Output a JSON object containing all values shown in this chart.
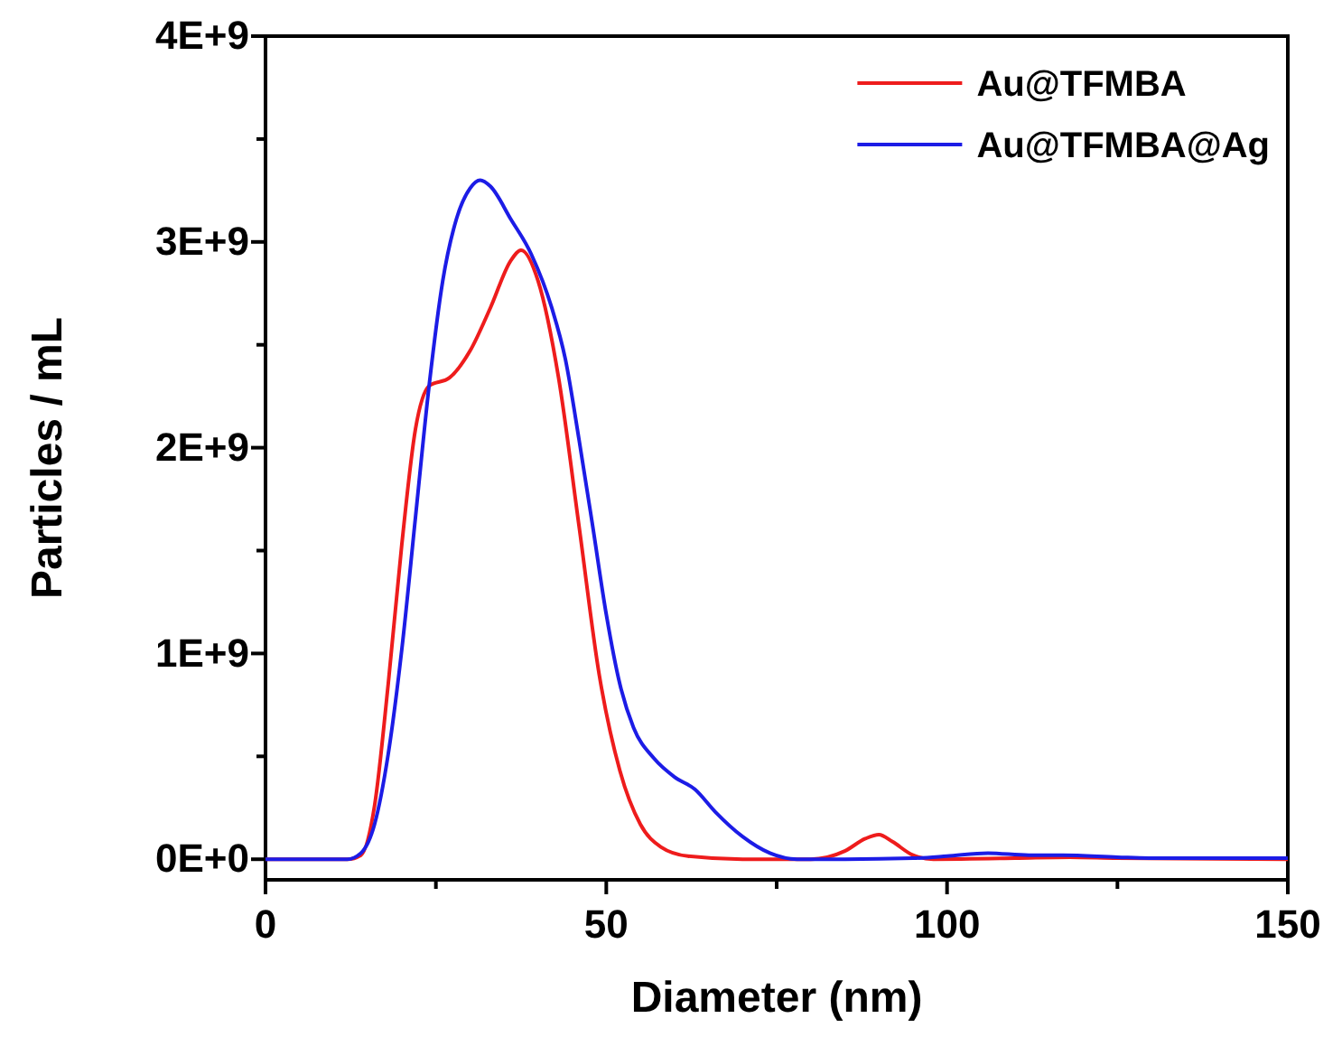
{
  "chart_data": {
    "type": "line",
    "xlabel": "Diameter (nm)",
    "ylabel": "Particles / mL",
    "xlim": [
      0,
      150
    ],
    "ylim": [
      -100000000.0,
      4000000000.0
    ],
    "xticks": [
      0,
      {
        "value": 25,
        "label": null
      },
      50,
      {
        "value": 75,
        "label": null
      },
      100,
      {
        "value": 125,
        "label": null
      },
      150
    ],
    "yticks": [
      {
        "value": 0,
        "label": "0E+0"
      },
      {
        "value": 500000000.0,
        "label": null
      },
      {
        "value": 1000000000.0,
        "label": "1E+9"
      },
      {
        "value": 1500000000.0,
        "label": null
      },
      {
        "value": 2000000000.0,
        "label": "2E+9"
      },
      {
        "value": 2500000000.0,
        "label": null
      },
      {
        "value": 3000000000.0,
        "label": "3E+9"
      },
      {
        "value": 3500000000.0,
        "label": null
      },
      {
        "value": 4000000000.0,
        "label": "4E+9"
      }
    ],
    "legend": "top right",
    "grid": false,
    "series": [
      {
        "name": "Au@TFMBA",
        "color": "#ee1c1c",
        "x": [
          0,
          12,
          14,
          16,
          18,
          20,
          22,
          24,
          27,
          30,
          33,
          36,
          37.5,
          40,
          43,
          46,
          49,
          52,
          55,
          58,
          62,
          70,
          80,
          85,
          88,
          90,
          92,
          95,
          98,
          110,
          118,
          125,
          150
        ],
        "values": [
          0,
          0,
          20000000.0,
          260000000.0,
          850000000.0,
          1530000000.0,
          2090000000.0,
          2300000000.0,
          2340000000.0,
          2470000000.0,
          2680000000.0,
          2910000000.0,
          2960000000.0,
          2810000000.0,
          2340000000.0,
          1620000000.0,
          890000000.0,
          430000000.0,
          170000000.0,
          60000000.0,
          15000000.0,
          0,
          0,
          40000000.0,
          100000000.0,
          120000000.0,
          85000000.0,
          20000000.0,
          0,
          5000000.0,
          10000000.0,
          5000000.0,
          0
        ]
      },
      {
        "name": "Au@TFMBA@Ag",
        "color": "#1c1ce6",
        "x": [
          0,
          12,
          14,
          16,
          18,
          20,
          22,
          24,
          26,
          28,
          30,
          31.5,
          33,
          36,
          39,
          42,
          44,
          46,
          48,
          50,
          52,
          54,
          57,
          60,
          63,
          66,
          70,
          74,
          78,
          85,
          95,
          100,
          106,
          112,
          117,
          125,
          130,
          150
        ],
        "values": [
          0,
          0,
          30000000.0,
          170000000.0,
          510000000.0,
          1020000000.0,
          1660000000.0,
          2300000000.0,
          2810000000.0,
          3110000000.0,
          3260000000.0,
          3300000000.0,
          3270000000.0,
          3110000000.0,
          2940000000.0,
          2680000000.0,
          2430000000.0,
          2040000000.0,
          1620000000.0,
          1190000000.0,
          850000000.0,
          640000000.0,
          490000000.0,
          400000000.0,
          340000000.0,
          230000000.0,
          110000000.0,
          30000000.0,
          0,
          0,
          5000000.0,
          15000000.0,
          30000000.0,
          20000000.0,
          20000000.0,
          10000000.0,
          5000000.0,
          5000000.0
        ]
      }
    ]
  }
}
